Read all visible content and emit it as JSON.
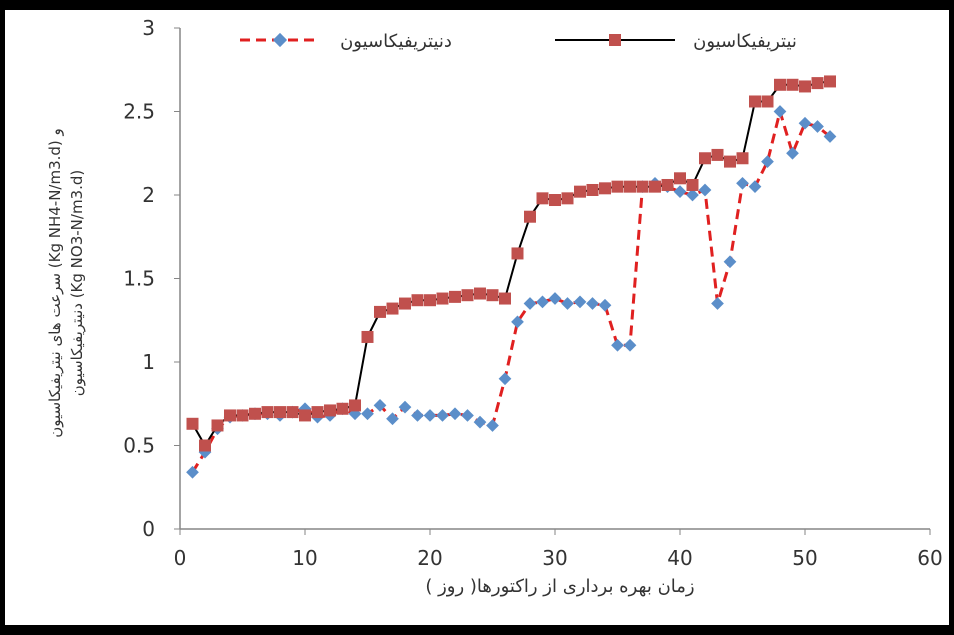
{
  "chart_data": {
    "type": "line",
    "title": "",
    "xlabel": "زمان بهره برداری از راکتورها( روز )",
    "ylabel_line1": "سرعت های نیتریفیکاسیون (Kg NH4-N/m3.d) و",
    "ylabel_line2": "دنیتریفیکاسیون (Kg NO3-N/m3.d)",
    "xlim": [
      0,
      60
    ],
    "ylim": [
      0,
      3
    ],
    "x_ticks": [
      "0",
      "10",
      "20",
      "30",
      "40",
      "50",
      "60"
    ],
    "y_ticks": [
      "0",
      "0.5",
      "1",
      "1.5",
      "2",
      "2.5",
      "3"
    ],
    "grid": false,
    "legend_position": "top",
    "series": [
      {
        "name": "دنیتریفیکاسیون",
        "color": "#e02020",
        "marker_color": "#5b8ec9",
        "line_style": "dashed",
        "marker": "diamond",
        "points": [
          [
            1,
            0.34
          ],
          [
            2,
            0.46
          ],
          [
            3,
            0.6
          ],
          [
            4,
            0.67
          ],
          [
            5,
            0.68
          ],
          [
            6,
            0.69
          ],
          [
            7,
            0.69
          ],
          [
            8,
            0.68
          ],
          [
            9,
            0.7
          ],
          [
            10,
            0.72
          ],
          [
            11,
            0.67
          ],
          [
            12,
            0.68
          ],
          [
            13,
            0.72
          ],
          [
            14,
            0.69
          ],
          [
            15,
            0.69
          ],
          [
            16,
            0.74
          ],
          [
            17,
            0.66
          ],
          [
            18,
            0.73
          ],
          [
            19,
            0.68
          ],
          [
            20,
            0.68
          ],
          [
            21,
            0.68
          ],
          [
            22,
            0.69
          ],
          [
            23,
            0.68
          ],
          [
            24,
            0.64
          ],
          [
            25,
            0.62
          ],
          [
            26,
            0.9
          ],
          [
            27,
            1.24
          ],
          [
            28,
            1.35
          ],
          [
            29,
            1.36
          ],
          [
            30,
            1.38
          ],
          [
            31,
            1.35
          ],
          [
            32,
            1.36
          ],
          [
            33,
            1.35
          ],
          [
            34,
            1.34
          ],
          [
            35,
            1.1
          ],
          [
            36,
            1.1
          ],
          [
            37,
            2.05
          ],
          [
            38,
            2.07
          ],
          [
            39,
            2.05
          ],
          [
            40,
            2.02
          ],
          [
            41,
            2.0
          ],
          [
            42,
            2.03
          ],
          [
            43,
            1.35
          ],
          [
            44,
            1.6
          ],
          [
            45,
            2.07
          ],
          [
            46,
            2.05
          ],
          [
            47,
            2.2
          ],
          [
            48,
            2.5
          ],
          [
            49,
            2.25
          ],
          [
            50,
            2.43
          ],
          [
            51,
            2.41
          ],
          [
            52,
            2.35
          ]
        ]
      },
      {
        "name": "نیتریفیکاسیون",
        "color": "#000000",
        "marker_color": "#c0504d",
        "line_style": "solid",
        "marker": "square",
        "points": [
          [
            1,
            0.63
          ],
          [
            2,
            0.5
          ],
          [
            3,
            0.62
          ],
          [
            4,
            0.68
          ],
          [
            5,
            0.68
          ],
          [
            6,
            0.69
          ],
          [
            7,
            0.7
          ],
          [
            8,
            0.7
          ],
          [
            9,
            0.7
          ],
          [
            10,
            0.68
          ],
          [
            11,
            0.7
          ],
          [
            12,
            0.71
          ],
          [
            13,
            0.72
          ],
          [
            14,
            0.74
          ],
          [
            15,
            1.15
          ],
          [
            16,
            1.3
          ],
          [
            17,
            1.32
          ],
          [
            18,
            1.35
          ],
          [
            19,
            1.37
          ],
          [
            20,
            1.37
          ],
          [
            21,
            1.38
          ],
          [
            22,
            1.39
          ],
          [
            23,
            1.4
          ],
          [
            24,
            1.41
          ],
          [
            25,
            1.4
          ],
          [
            26,
            1.38
          ],
          [
            27,
            1.65
          ],
          [
            28,
            1.87
          ],
          [
            29,
            1.98
          ],
          [
            30,
            1.97
          ],
          [
            31,
            1.98
          ],
          [
            32,
            2.02
          ],
          [
            33,
            2.03
          ],
          [
            34,
            2.04
          ],
          [
            35,
            2.05
          ],
          [
            36,
            2.05
          ],
          [
            37,
            2.05
          ],
          [
            38,
            2.05
          ],
          [
            39,
            2.06
          ],
          [
            40,
            2.1
          ],
          [
            41,
            2.06
          ],
          [
            42,
            2.22
          ],
          [
            43,
            2.24
          ],
          [
            44,
            2.2
          ],
          [
            45,
            2.22
          ],
          [
            46,
            2.56
          ],
          [
            47,
            2.56
          ],
          [
            48,
            2.66
          ],
          [
            49,
            2.66
          ],
          [
            50,
            2.65
          ],
          [
            51,
            2.67
          ],
          [
            52,
            2.68
          ]
        ]
      }
    ]
  }
}
